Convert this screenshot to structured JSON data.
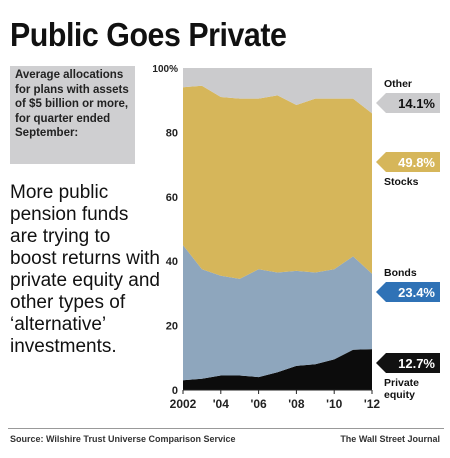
{
  "header": {
    "title": "Public Goes Private",
    "description": "Average allocations for plans with assets of $5 billion or more, for quarter ended September:",
    "headline": "More public pension funds are trying to boost returns with private equity and other types of ‘alternative’ investments."
  },
  "footer": {
    "source": "Source: Wilshire Trust Universe Comparison Service",
    "credit": "The Wall Street Journal"
  },
  "colors": {
    "private_equity": "#0c0c0c",
    "bonds": "#8ea6bd",
    "stocks": "#d6b65a",
    "other": "#cbcbcd",
    "callout_dark": "#111111",
    "callout_bonds": "#2f72b6",
    "callout_stocks": "#d6b65a",
    "callout_other": "#cbcbcd"
  },
  "chart_data": {
    "type": "area",
    "stacked": true,
    "title": "Public Goes Private",
    "x": [
      2002,
      2003,
      2004,
      2005,
      2006,
      2007,
      2008,
      2009,
      2010,
      2011,
      2012
    ],
    "x_tick_labels": [
      "2002",
      "'04",
      "'06",
      "'08",
      "'10",
      "'12"
    ],
    "x_tick_values": [
      2002,
      2004,
      2006,
      2008,
      2010,
      2012
    ],
    "y_tick_labels": [
      "0",
      "20",
      "40",
      "60",
      "80",
      "100%"
    ],
    "ylim": [
      0,
      100
    ],
    "series": [
      {
        "name": "Private equity",
        "values": [
          3,
          3.5,
          4.5,
          4.5,
          4,
          5.5,
          7.5,
          8,
          9.5,
          12.5,
          12.7
        ]
      },
      {
        "name": "Bonds",
        "values": [
          42,
          34,
          31,
          30,
          33.5,
          31,
          29.5,
          28.5,
          28,
          29,
          23.4
        ]
      },
      {
        "name": "Stocks",
        "values": [
          49,
          57,
          55.5,
          56,
          53,
          55,
          51.5,
          54,
          53,
          49,
          49.8
        ]
      },
      {
        "name": "Other",
        "values": [
          6,
          5.5,
          9,
          9.5,
          9.5,
          8.5,
          11.5,
          9.5,
          9.5,
          9.5,
          14.1
        ]
      }
    ],
    "callouts": [
      {
        "series": "Other",
        "label": "Other",
        "value": "14.1%"
      },
      {
        "series": "Stocks",
        "label": "Stocks",
        "value": "49.8%"
      },
      {
        "series": "Bonds",
        "label": "Bonds",
        "value": "23.4%"
      },
      {
        "series": "Private equity",
        "label": "Private equity",
        "value": "12.7%"
      }
    ]
  }
}
